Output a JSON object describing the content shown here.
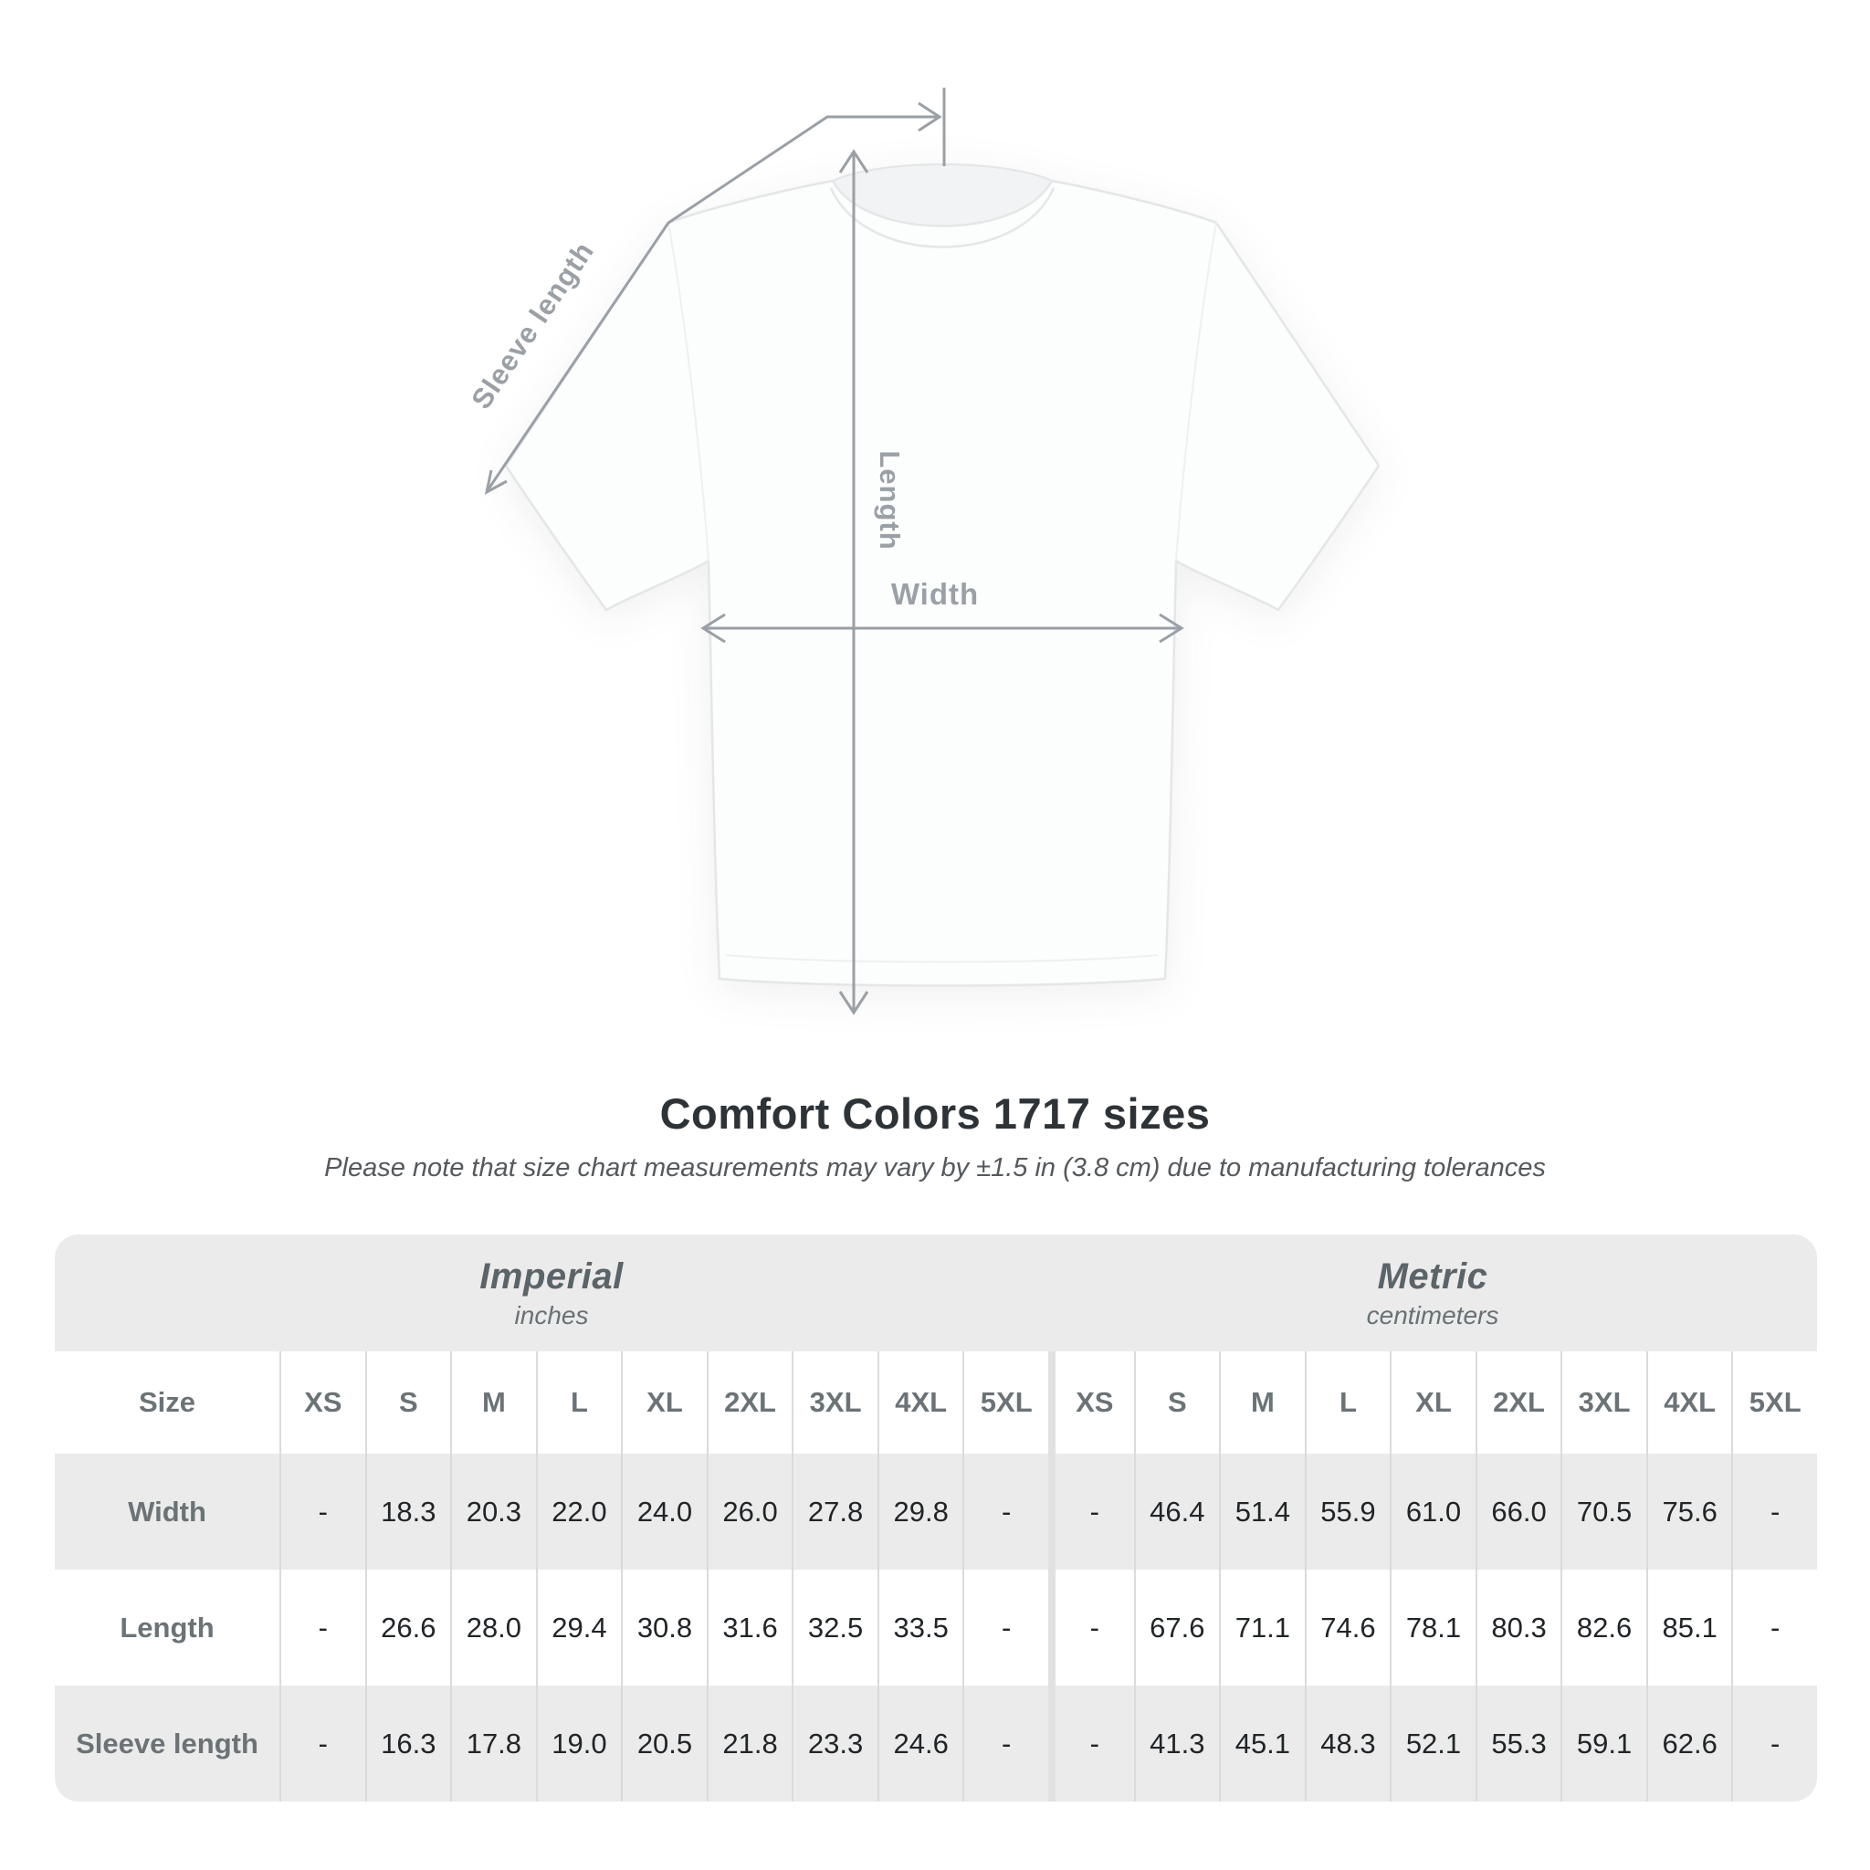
{
  "diagram": {
    "sleeve_length_label": "Sleeve length",
    "length_label": "Length",
    "width_label": "Width"
  },
  "chart_data": {
    "type": "table",
    "title": "Comfort Colors 1717 sizes",
    "subtitle": "Please note that size chart measurements may vary by ±1.5 in (3.8 cm) due to manufacturing tolerances",
    "size_col_header": "Size",
    "sizes": [
      "XS",
      "S",
      "M",
      "L",
      "XL",
      "2XL",
      "3XL",
      "4XL",
      "5XL"
    ],
    "unit_groups": [
      {
        "label": "Imperial",
        "sublabel": "inches"
      },
      {
        "label": "Metric",
        "sublabel": "centimeters"
      }
    ],
    "rows": [
      {
        "label": "Width",
        "imperial": [
          "-",
          "18.3",
          "20.3",
          "22.0",
          "24.0",
          "26.0",
          "27.8",
          "29.8",
          "-"
        ],
        "metric": [
          "-",
          "46.4",
          "51.4",
          "55.9",
          "61.0",
          "66.0",
          "70.5",
          "75.6",
          "-"
        ]
      },
      {
        "label": "Length",
        "imperial": [
          "-",
          "26.6",
          "28.0",
          "29.4",
          "30.8",
          "31.6",
          "32.5",
          "33.5",
          "-"
        ],
        "metric": [
          "-",
          "67.6",
          "71.1",
          "74.6",
          "78.1",
          "80.3",
          "82.6",
          "85.1",
          "-"
        ]
      },
      {
        "label": "Sleeve length",
        "imperial": [
          "-",
          "16.3",
          "17.8",
          "19.0",
          "20.5",
          "21.8",
          "23.3",
          "24.6",
          "-"
        ],
        "metric": [
          "-",
          "41.3",
          "45.1",
          "48.3",
          "52.1",
          "55.3",
          "59.1",
          "62.6",
          "-"
        ]
      }
    ]
  }
}
